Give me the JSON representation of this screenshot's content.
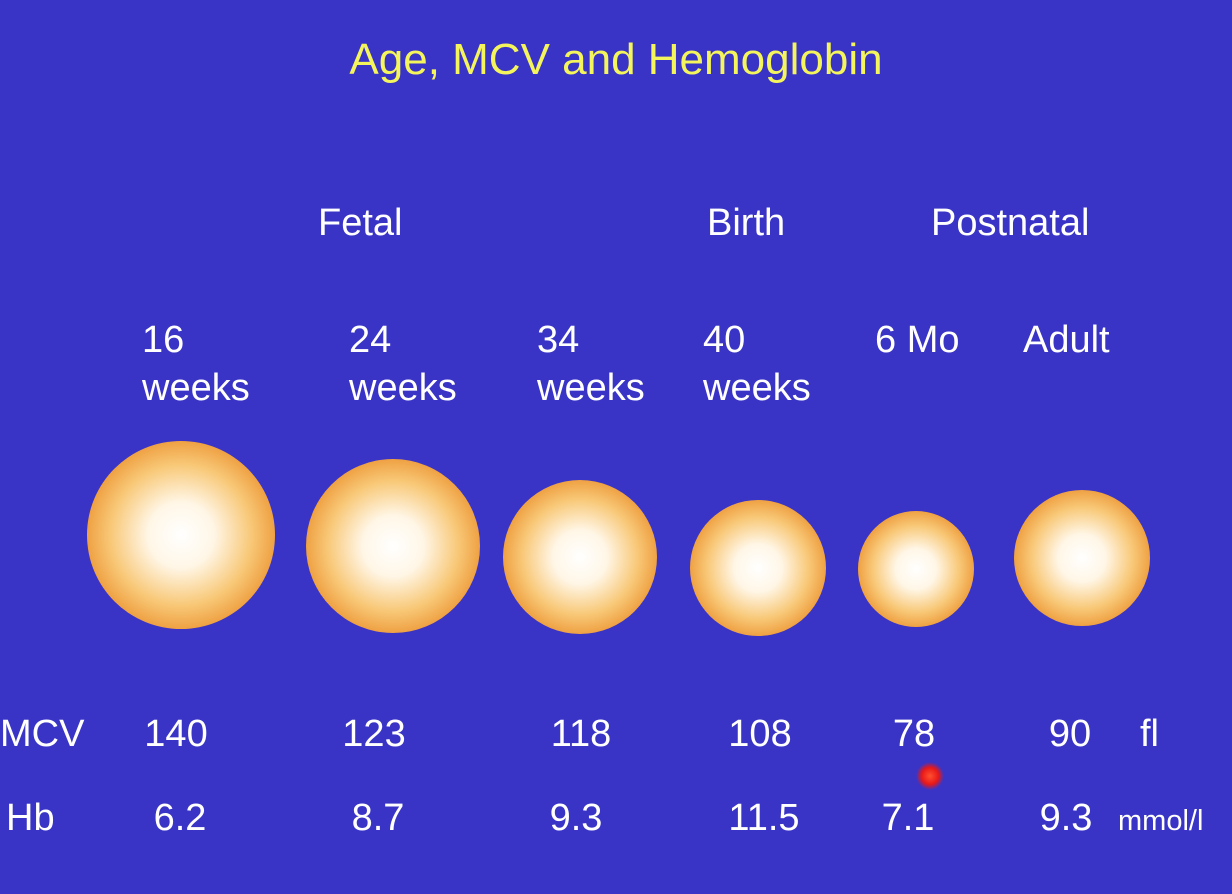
{
  "title": "Age, MCV and Hemoglobin",
  "phases": [
    "Fetal",
    "Birth",
    "Postnatal"
  ],
  "columns": [
    {
      "age": [
        "16",
        "weeks"
      ],
      "mcv": "140",
      "hb": "6.2"
    },
    {
      "age": [
        "24",
        "weeks"
      ],
      "mcv": "123",
      "hb": "8.7"
    },
    {
      "age": [
        "34",
        "weeks"
      ],
      "mcv": "118",
      "hb": "9.3"
    },
    {
      "age": [
        "40",
        "weeks"
      ],
      "mcv": "108",
      "hb": "11.5"
    },
    {
      "age": [
        "6 Mo"
      ],
      "mcv": "78",
      "hb": "7.1"
    },
    {
      "age": [
        "Adult"
      ],
      "mcv": "90",
      "hb": "9.3"
    }
  ],
  "rows": {
    "mcv": {
      "label": "MCV",
      "unit": "fl"
    },
    "hb": {
      "label": "Hb",
      "unit": "mmol/l"
    }
  }
}
